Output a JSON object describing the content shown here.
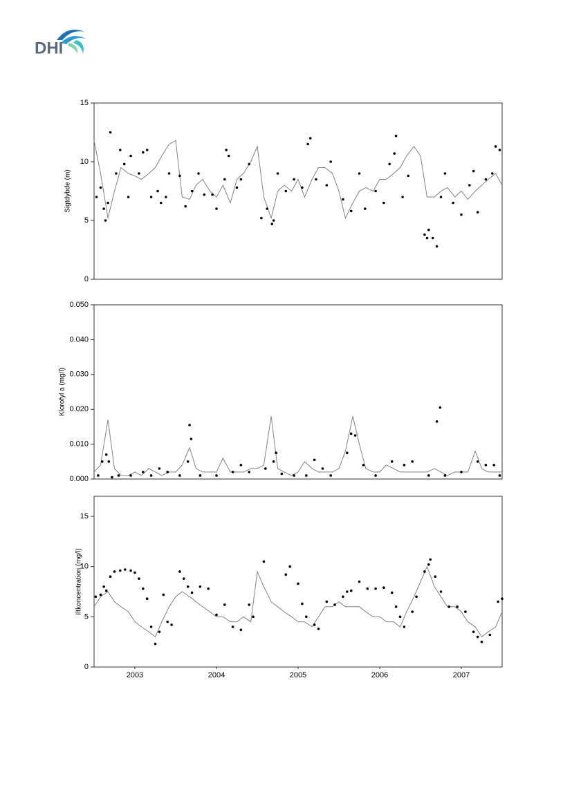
{
  "logo": "DHI",
  "chart_data": [
    {
      "type": "line",
      "y_label": "Sigtdybde (m)",
      "xlim": [
        2003,
        2008
      ],
      "ylim": [
        0,
        15
      ],
      "yticks": [
        0,
        5,
        10,
        15
      ],
      "series": [
        {
          "kind": "line",
          "color": "#808080",
          "x": [
            2003.0,
            2003.08,
            2003.17,
            2003.25,
            2003.33,
            2003.42,
            2003.5,
            2003.58,
            2003.67,
            2003.75,
            2003.83,
            2003.92,
            2004.0,
            2004.08,
            2004.17,
            2004.25,
            2004.33,
            2004.42,
            2004.5,
            2004.58,
            2004.67,
            2004.75,
            2004.83,
            2004.92,
            2005.0,
            2005.08,
            2005.17,
            2005.25,
            2005.33,
            2005.42,
            2005.5,
            2005.58,
            2005.67,
            2005.75,
            2005.83,
            2005.92,
            2006.0,
            2006.08,
            2006.17,
            2006.25,
            2006.33,
            2006.42,
            2006.5,
            2006.58,
            2006.67,
            2006.75,
            2006.83,
            2006.92,
            2007.0,
            2007.08,
            2007.17,
            2007.25,
            2007.33,
            2007.42,
            2007.5,
            2007.58,
            2007.67,
            2007.75,
            2007.83,
            2007.92,
            2008.0
          ],
          "values": [
            11.8,
            9,
            5.2,
            7.5,
            9.5,
            9,
            8.8,
            8.5,
            9,
            9.5,
            10.5,
            11.5,
            11.8,
            7,
            6.8,
            8,
            8.5,
            7.5,
            7,
            8,
            6.5,
            8.5,
            9,
            10,
            11.3,
            7,
            5.2,
            7.5,
            8,
            7.5,
            8.5,
            7,
            8.5,
            9.5,
            9.5,
            9,
            7.5,
            5.2,
            6.5,
            7.5,
            7.8,
            7.5,
            8.5,
            8.5,
            9,
            9.5,
            10.5,
            11.3,
            10.5,
            7,
            7,
            7.5,
            7.8,
            7,
            7.5,
            6.8,
            7.5,
            8,
            8.5,
            9,
            8
          ]
        },
        {
          "kind": "scatter",
          "color": "#000000",
          "x": [
            2003.03,
            2003.08,
            2003.12,
            2003.14,
            2003.17,
            2003.2,
            2003.27,
            2003.32,
            2003.37,
            2003.42,
            2003.45,
            2003.55,
            2003.6,
            2003.65,
            2003.7,
            2003.78,
            2003.82,
            2003.88,
            2003.92,
            2004.05,
            2004.12,
            2004.2,
            2004.28,
            2004.35,
            2004.45,
            2004.5,
            2004.6,
            2004.62,
            2004.65,
            2004.75,
            2004.8,
            2004.9,
            2005.05,
            2005.12,
            2005.18,
            2005.2,
            2005.25,
            2005.35,
            2005.45,
            2005.55,
            2005.62,
            2005.65,
            2005.72,
            2005.85,
            2005.9,
            2006.05,
            2006.15,
            2006.25,
            2006.32,
            2006.45,
            2006.55,
            2006.62,
            2006.68,
            2006.7,
            2006.78,
            2006.85,
            2007.05,
            2007.08,
            2007.1,
            2007.15,
            2007.2,
            2007.25,
            2007.3,
            2007.4,
            2007.5,
            2007.6,
            2007.65,
            2007.7,
            2007.8,
            2007.88,
            2007.92,
            2007.97
          ],
          "values": [
            7,
            7.8,
            6,
            5,
            6.5,
            12.5,
            9,
            11,
            9.8,
            7,
            10.5,
            9,
            10.8,
            11,
            7,
            7.5,
            6.5,
            7,
            9,
            8.8,
            6.2,
            7.5,
            9,
            7.2,
            7.2,
            6,
            8.5,
            11,
            10.5,
            7.8,
            8.5,
            9.8,
            5.2,
            6,
            4.7,
            5,
            9,
            7.5,
            8.5,
            7.8,
            11.5,
            12,
            8.5,
            8,
            10,
            6.8,
            5.8,
            9,
            6,
            7.5,
            6.5,
            9.8,
            10.7,
            12.2,
            7,
            8.8,
            3.8,
            3.5,
            4.2,
            3.5,
            2.8,
            7,
            9,
            6.5,
            5.5,
            8,
            9.2,
            5.7,
            8.5,
            9,
            11.3,
            11
          ]
        }
      ]
    },
    {
      "type": "line",
      "y_label": "Klorofyl a (mg/l)",
      "xlim": [
        2003,
        2008
      ],
      "ylim": [
        0,
        0.05
      ],
      "yticks": [
        {
          "value": 0,
          "label": "0.000"
        },
        {
          "value": 0.01,
          "label": "0.010"
        },
        {
          "value": 0.02,
          "label": "0.020"
        },
        {
          "value": 0.03,
          "label": "0.030"
        },
        {
          "value": 0.04,
          "label": "0.040"
        },
        {
          "value": 0.05,
          "label": "0.050"
        }
      ],
      "series": [
        {
          "kind": "line",
          "color": "#808080",
          "x": [
            2003.0,
            2003.08,
            2003.17,
            2003.25,
            2003.33,
            2003.42,
            2003.5,
            2003.58,
            2003.67,
            2003.75,
            2003.83,
            2003.92,
            2004.0,
            2004.08,
            2004.17,
            2004.25,
            2004.33,
            2004.42,
            2004.5,
            2004.58,
            2004.67,
            2004.75,
            2004.83,
            2004.92,
            2005.0,
            2005.08,
            2005.17,
            2005.25,
            2005.33,
            2005.42,
            2005.5,
            2005.58,
            2005.67,
            2005.75,
            2005.83,
            2005.92,
            2006.0,
            2006.08,
            2006.17,
            2006.25,
            2006.33,
            2006.42,
            2006.5,
            2006.58,
            2006.67,
            2006.75,
            2006.83,
            2006.92,
            2007.0,
            2007.08,
            2007.17,
            2007.25,
            2007.33,
            2007.42,
            2007.5,
            2007.58,
            2007.67,
            2007.75,
            2007.83,
            2007.92,
            2008.0
          ],
          "values": [
            0.002,
            0.004,
            0.017,
            0.003,
            0.001,
            0.001,
            0.002,
            0.001,
            0.003,
            0.002,
            0.001,
            0.002,
            0.002,
            0.004,
            0.009,
            0.003,
            0.002,
            0.002,
            0.002,
            0.006,
            0.002,
            0.002,
            0.002,
            0.003,
            0.003,
            0.004,
            0.018,
            0.003,
            0.002,
            0.001,
            0.002,
            0.005,
            0.003,
            0.002,
            0.002,
            0.002,
            0.003,
            0.008,
            0.018,
            0.01,
            0.003,
            0.002,
            0.002,
            0.004,
            0.003,
            0.002,
            0.002,
            0.002,
            0.002,
            0.002,
            0.003,
            0.002,
            0.001,
            0.002,
            0.002,
            0.002,
            0.008,
            0.003,
            0.002,
            0.002,
            0.002
          ]
        },
        {
          "kind": "scatter",
          "color": "#000000",
          "x": [
            2003.05,
            2003.1,
            2003.15,
            2003.18,
            2003.22,
            2003.3,
            2003.45,
            2003.6,
            2003.7,
            2003.8,
            2003.9,
            2004.05,
            2004.15,
            2004.17,
            2004.19,
            2004.3,
            2004.5,
            2004.7,
            2004.8,
            2004.9,
            2005.1,
            2005.2,
            2005.23,
            2005.3,
            2005.45,
            2005.6,
            2005.7,
            2005.8,
            2005.9,
            2006.1,
            2006.15,
            2006.2,
            2006.3,
            2006.45,
            2006.65,
            2006.8,
            2006.9,
            2007.1,
            2007.2,
            2007.24,
            2007.3,
            2007.5,
            2007.7,
            2007.8,
            2007.9,
            2007.97
          ],
          "values": [
            0.001,
            0.005,
            0.007,
            0.005,
            0.0005,
            0.001,
            0.001,
            0.002,
            0.001,
            0.003,
            0.002,
            0.001,
            0.005,
            0.0155,
            0.0115,
            0.001,
            0.001,
            0.002,
            0.004,
            0.002,
            0.003,
            0.005,
            0.0075,
            0.0015,
            0.001,
            0.001,
            0.0055,
            0.003,
            0.001,
            0.0075,
            0.013,
            0.0125,
            0.004,
            0.001,
            0.005,
            0.004,
            0.005,
            0.001,
            0.0165,
            0.0205,
            0.001,
            0.002,
            0.005,
            0.004,
            0.004,
            0.001
          ]
        }
      ]
    },
    {
      "type": "line",
      "y_label": "Iltkoncentration (mg/l)",
      "xlim": [
        2003,
        2008
      ],
      "ylim": [
        0,
        17
      ],
      "yticks": [
        0,
        5,
        10,
        15
      ],
      "xticks": [
        {
          "value": 2003.5,
          "label": "2003"
        },
        {
          "value": 2004.5,
          "label": "2004"
        },
        {
          "value": 2005.5,
          "label": "2005"
        },
        {
          "value": 2006.5,
          "label": "2006"
        },
        {
          "value": 2007.5,
          "label": "2007"
        }
      ],
      "series": [
        {
          "kind": "line",
          "color": "#808080",
          "x": [
            2003.0,
            2003.08,
            2003.17,
            2003.25,
            2003.33,
            2003.42,
            2003.5,
            2003.58,
            2003.67,
            2003.75,
            2003.83,
            2003.92,
            2004.0,
            2004.08,
            2004.17,
            2004.25,
            2004.33,
            2004.42,
            2004.5,
            2004.58,
            2004.67,
            2004.75,
            2004.83,
            2004.92,
            2005.0,
            2005.08,
            2005.17,
            2005.25,
            2005.33,
            2005.42,
            2005.5,
            2005.58,
            2005.67,
            2005.75,
            2005.83,
            2005.92,
            2006.0,
            2006.08,
            2006.17,
            2006.25,
            2006.33,
            2006.42,
            2006.5,
            2006.58,
            2006.67,
            2006.75,
            2006.83,
            2006.92,
            2007.0,
            2007.08,
            2007.17,
            2007.25,
            2007.33,
            2007.42,
            2007.5,
            2007.58,
            2007.67,
            2007.75,
            2007.83,
            2007.92,
            2008.0
          ],
          "values": [
            6,
            7,
            7.5,
            6.5,
            6,
            5.5,
            4.5,
            4,
            3.5,
            3,
            4.5,
            6,
            7,
            7.5,
            7,
            6.5,
            6,
            5.5,
            5,
            5,
            4.5,
            4.5,
            5,
            4.5,
            9.5,
            8,
            6.5,
            6,
            5.5,
            5,
            4.5,
            4.5,
            4,
            5,
            6,
            6,
            6.5,
            6,
            6,
            6,
            5.5,
            5,
            5,
            4.5,
            4.5,
            4,
            5.5,
            7,
            8.5,
            10,
            8,
            7,
            6,
            6,
            5.5,
            4.5,
            4,
            3,
            3.5,
            4,
            5.5
          ]
        },
        {
          "kind": "scatter",
          "color": "#000000",
          "x": [
            2003.02,
            2003.08,
            2003.12,
            2003.15,
            2003.2,
            2003.25,
            2003.32,
            2003.38,
            2003.45,
            2003.5,
            2003.55,
            2003.6,
            2003.65,
            2003.7,
            2003.75,
            2003.8,
            2003.85,
            2003.9,
            2003.95,
            2004.05,
            2004.1,
            2004.15,
            2004.2,
            2004.3,
            2004.4,
            2004.5,
            2004.6,
            2004.7,
            2004.8,
            2004.9,
            2004.95,
            2005.08,
            2005.35,
            2005.4,
            2005.5,
            2005.55,
            2005.6,
            2005.7,
            2005.75,
            2005.85,
            2005.95,
            2006.05,
            2006.1,
            2006.15,
            2006.25,
            2006.35,
            2006.45,
            2006.55,
            2006.65,
            2006.7,
            2006.75,
            2006.8,
            2006.9,
            2006.95,
            2007.05,
            2007.1,
            2007.12,
            2007.18,
            2007.25,
            2007.35,
            2007.45,
            2007.55,
            2007.65,
            2007.7,
            2007.75,
            2007.85,
            2007.95,
            2008.0
          ],
          "values": [
            7,
            7.2,
            8,
            7.6,
            9,
            9.5,
            9.6,
            9.7,
            9.6,
            9.4,
            8.8,
            7.8,
            6.8,
            4,
            2.3,
            3.5,
            7.2,
            4.5,
            4.2,
            9.5,
            8.8,
            8,
            7.4,
            8,
            7.8,
            5.2,
            6.2,
            4,
            3.7,
            6.2,
            5,
            10.5,
            9.2,
            10,
            8.3,
            6.3,
            5,
            4.2,
            3.8,
            6.5,
            6.2,
            7,
            7.5,
            7.6,
            8.5,
            7.8,
            7.8,
            7.9,
            7.4,
            6,
            5,
            4,
            5.5,
            7,
            9.5,
            10.2,
            10.7,
            9,
            7.5,
            6,
            6,
            5.5,
            3.5,
            3,
            2.5,
            3.2,
            6.5,
            6.8
          ]
        }
      ]
    }
  ]
}
